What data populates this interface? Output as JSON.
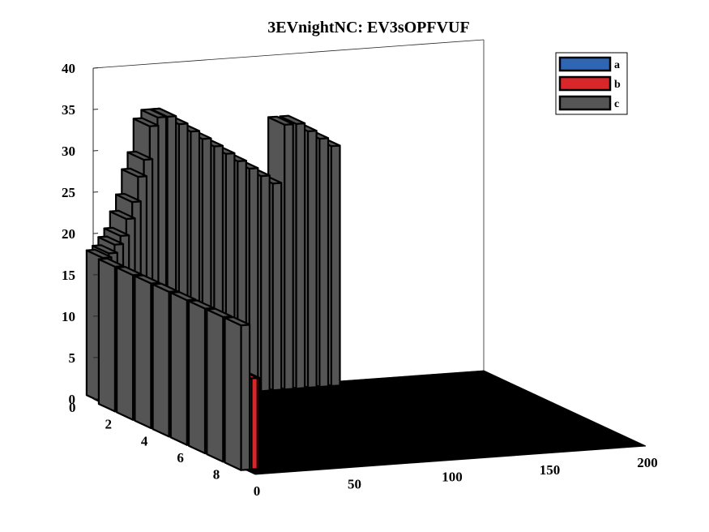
{
  "chart_data": {
    "type": "3d-bar",
    "title": "3EVnightNC: EV3sOPFVUF",
    "xlabel": "",
    "ylabel": "",
    "zlabel": "",
    "x_ticks": [
      "0",
      "50",
      "100",
      "150",
      "200"
    ],
    "y_ticks": [
      "0",
      "2",
      "4",
      "6",
      "8"
    ],
    "z_ticks": [
      "0",
      "5",
      "10",
      "15",
      "20",
      "25",
      "30",
      "35",
      "40"
    ],
    "xlim": [
      0,
      200
    ],
    "ylim": [
      0,
      9
    ],
    "zlim": [
      0,
      40
    ],
    "grid": false,
    "legend_position": "top-right",
    "series": [
      {
        "name": "a",
        "color": "#2f66b3",
        "values": []
      },
      {
        "name": "b",
        "color": "#d9262b",
        "values": [
          {
            "x": 1,
            "y": 8,
            "z": 11
          },
          {
            "x": 4,
            "y": 8,
            "z": 11
          },
          {
            "x": 5,
            "y": 8,
            "z": 11
          },
          {
            "x": 36,
            "y": 0,
            "z": 34
          }
        ]
      },
      {
        "name": "c",
        "color": "#555555",
        "values": [
          {
            "x": 0,
            "y": 1,
            "z": 17.5
          },
          {
            "x": 0,
            "y": 2,
            "z": 17.5
          },
          {
            "x": 0,
            "y": 3,
            "z": 17.5
          },
          {
            "x": 0,
            "y": 4,
            "z": 17.5
          },
          {
            "x": 0,
            "y": 5,
            "z": 17.5
          },
          {
            "x": 0,
            "y": 6,
            "z": 17.5
          },
          {
            "x": 0,
            "y": 7,
            "z": 17.5
          },
          {
            "x": 0,
            "y": 8,
            "z": 17.5
          },
          {
            "x": 3,
            "y": 0,
            "z": 17.5
          },
          {
            "x": 6,
            "y": 0,
            "z": 18
          },
          {
            "x": 9,
            "y": 0,
            "z": 19
          },
          {
            "x": 12,
            "y": 0,
            "z": 20
          },
          {
            "x": 15,
            "y": 0,
            "z": 22
          },
          {
            "x": 18,
            "y": 0,
            "z": 24
          },
          {
            "x": 21,
            "y": 0,
            "z": 27
          },
          {
            "x": 24,
            "y": 0,
            "z": 29
          },
          {
            "x": 27,
            "y": 0,
            "z": 33
          },
          {
            "x": 31,
            "y": 0,
            "z": 34
          },
          {
            "x": 36,
            "y": 0,
            "z": 34
          },
          {
            "x": 42,
            "y": 0,
            "z": 33
          },
          {
            "x": 48,
            "y": 0,
            "z": 32
          },
          {
            "x": 54,
            "y": 0,
            "z": 31
          },
          {
            "x": 60,
            "y": 0,
            "z": 30
          },
          {
            "x": 66,
            "y": 0,
            "z": 29
          },
          {
            "x": 72,
            "y": 0,
            "z": 28
          },
          {
            "x": 78,
            "y": 0,
            "z": 27
          },
          {
            "x": 84,
            "y": 0,
            "z": 26
          },
          {
            "x": 90,
            "y": 0,
            "z": 25
          },
          {
            "x": 96,
            "y": 0,
            "z": 32
          },
          {
            "x": 102,
            "y": 0,
            "z": 32
          },
          {
            "x": 108,
            "y": 0,
            "z": 31
          },
          {
            "x": 114,
            "y": 0,
            "z": 30
          },
          {
            "x": 120,
            "y": 0,
            "z": 29
          }
        ]
      }
    ]
  }
}
